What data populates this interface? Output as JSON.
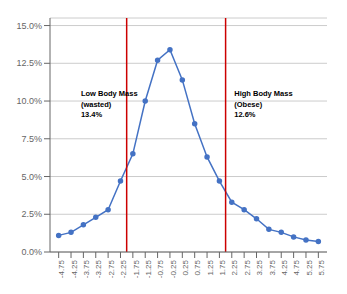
{
  "chart_data": {
    "type": "line",
    "x": [
      -4.75,
      -4.25,
      -3.75,
      -3.25,
      -2.75,
      -2.25,
      -1.75,
      -1.25,
      -0.75,
      -0.25,
      0.25,
      0.75,
      1.25,
      1.75,
      2.25,
      2.75,
      3.25,
      3.75,
      4.25,
      4.75,
      5.25,
      5.75
    ],
    "values": [
      0.011,
      0.013,
      0.018,
      0.023,
      0.028,
      0.047,
      0.065,
      0.1,
      0.127,
      0.134,
      0.114,
      0.085,
      0.063,
      0.047,
      0.033,
      0.028,
      0.022,
      0.015,
      0.013,
      0.01,
      0.008,
      0.007
    ],
    "color": "#4472c4",
    "marker": "circle",
    "xlim": [
      -5.1,
      6.1
    ],
    "xticks": [
      -4.75,
      -4.25,
      -3.75,
      -3.25,
      -2.75,
      -2.25,
      -1.75,
      -1.25,
      -0.75,
      -0.25,
      0.25,
      0.75,
      1.25,
      1.75,
      2.25,
      2.75,
      3.25,
      3.75,
      4.25,
      4.75,
      5.25,
      5.75
    ],
    "ylim": [
      0.0,
      0.155
    ],
    "yticks": [
      {
        "value": 0.0,
        "label": "0.0%"
      },
      {
        "value": 0.025,
        "label": "2.5%"
      },
      {
        "value": 0.05,
        "label": "5.0%"
      },
      {
        "value": 0.075,
        "label": "7.5%"
      },
      {
        "value": 0.1,
        "label": "10.0%"
      },
      {
        "value": 0.125,
        "label": "12.5%"
      },
      {
        "value": 0.15,
        "label": "15.0%"
      }
    ],
    "grid": true,
    "vlines": [
      {
        "x": -2.0,
        "color": "#cc0000"
      },
      {
        "x": 2.0,
        "color": "#cc0000"
      }
    ],
    "annotations": [
      {
        "text": "Low Body Mass\n(wasted)\n13.4%",
        "x": -3.85,
        "y": 0.108
      },
      {
        "text": "High Body Mass\n(Obese)\n12.6%",
        "x": 2.35,
        "y": 0.108
      }
    ]
  }
}
